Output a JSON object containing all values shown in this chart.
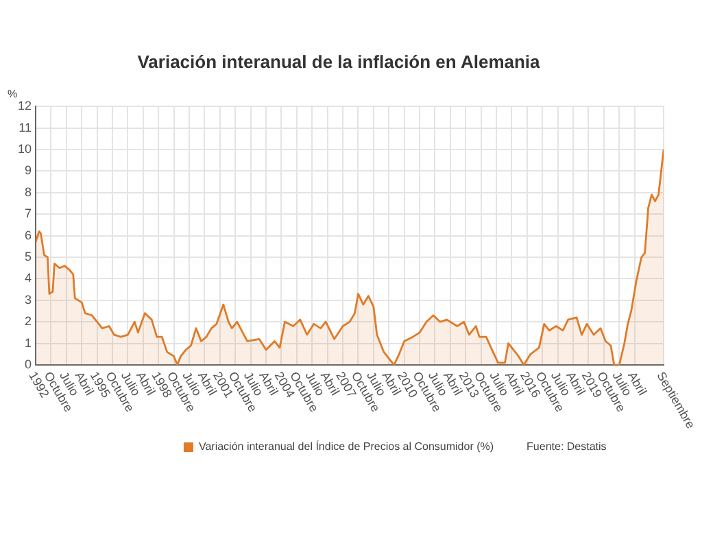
{
  "chart_data": {
    "type": "area",
    "title": "Variación interanual de la inflación en Alemania",
    "ylabel": "%",
    "x": [
      "1992-01",
      "1992-03",
      "1992-04",
      "1992-06",
      "1992-08",
      "1992-09",
      "1992-11",
      "1992-12",
      "1993-03",
      "1993-06",
      "1993-09",
      "1993-11",
      "1993-12",
      "1994-04",
      "1994-06",
      "1994-10",
      "1995-04",
      "1995-08",
      "1995-11",
      "1996-03",
      "1996-07",
      "1996-11",
      "1997-01",
      "1997-05",
      "1997-09",
      "1997-12",
      "1998-03",
      "1998-06",
      "1998-10",
      "1998-12",
      "1999-02",
      "1999-05",
      "1999-08",
      "1999-11",
      "2000-02",
      "2000-05",
      "2000-08",
      "2000-11",
      "2001-03",
      "2001-06",
      "2001-08",
      "2001-11",
      "2002-05",
      "2002-12",
      "2003-04",
      "2003-09",
      "2003-12",
      "2004-03",
      "2004-08",
      "2004-12",
      "2005-04",
      "2005-08",
      "2005-12",
      "2006-03",
      "2006-08",
      "2007-01",
      "2007-05",
      "2007-08",
      "2007-10",
      "2008-01",
      "2008-04",
      "2008-07",
      "2008-09",
      "2009-01",
      "2009-04",
      "2009-07",
      "2009-10",
      "2010-01",
      "2010-06",
      "2010-10",
      "2011-02",
      "2011-06",
      "2011-10",
      "2012-02",
      "2012-08",
      "2012-12",
      "2013-03",
      "2013-07",
      "2013-09",
      "2014-01",
      "2014-05",
      "2014-08",
      "2014-12",
      "2015-02",
      "2015-06",
      "2015-08",
      "2015-11",
      "2016-03",
      "2016-08",
      "2016-11",
      "2017-02",
      "2017-06",
      "2017-10",
      "2018-01",
      "2018-06",
      "2018-09",
      "2018-12",
      "2019-04",
      "2019-08",
      "2019-11",
      "2020-02",
      "2020-04",
      "2020-07",
      "2020-10",
      "2020-12",
      "2021-02",
      "2021-05",
      "2021-08",
      "2021-10",
      "2021-12",
      "2022-02",
      "2022-04",
      "2022-06",
      "2022-09"
    ],
    "series": [
      {
        "name": "Variación interanual del Índice de Precios al Consumidor (%)",
        "color": "#e07b28",
        "values": [
          5.7,
          6.2,
          6.1,
          5.1,
          5.0,
          3.3,
          3.4,
          4.7,
          4.5,
          4.6,
          4.4,
          4.2,
          3.1,
          2.9,
          2.4,
          2.3,
          1.7,
          1.8,
          1.4,
          1.3,
          1.4,
          2.0,
          1.5,
          2.4,
          2.1,
          1.3,
          1.3,
          0.6,
          0.4,
          0.0,
          0.4,
          0.7,
          0.9,
          1.7,
          1.1,
          1.3,
          1.7,
          1.9,
          2.8,
          2.0,
          1.7,
          2.0,
          1.1,
          1.2,
          0.7,
          1.1,
          0.8,
          2.0,
          1.8,
          2.1,
          1.4,
          1.9,
          1.7,
          2.0,
          1.2,
          1.8,
          2.0,
          2.4,
          3.3,
          2.8,
          3.2,
          2.7,
          1.4,
          0.6,
          0.3,
          0.0,
          0.5,
          1.1,
          1.3,
          1.5,
          2.0,
          2.3,
          2.0,
          2.1,
          1.8,
          2.0,
          1.4,
          1.8,
          1.3,
          1.3,
          0.6,
          0.1,
          0.1,
          1.0,
          0.6,
          0.4,
          0.0,
          0.5,
          0.8,
          1.9,
          1.6,
          1.8,
          1.6,
          2.1,
          2.2,
          1.4,
          1.9,
          1.4,
          1.7,
          1.1,
          0.9,
          0.0,
          0.0,
          1.0,
          1.9,
          2.5,
          3.9,
          5.0,
          5.2,
          7.3,
          7.9,
          7.6,
          7.9,
          10.0
        ]
      }
    ],
    "xlim": [
      "1992-01",
      "2022-09"
    ],
    "xticks": [
      {
        "value": "1992-01",
        "label": "1992"
      },
      {
        "value": "1992-10",
        "label": "Octubre"
      },
      {
        "value": "1993-07",
        "label": "Julio"
      },
      {
        "value": "1994-04",
        "label": "Abril"
      },
      {
        "value": "1995-01",
        "label": "1995"
      },
      {
        "value": "1995-10",
        "label": "Octubre"
      },
      {
        "value": "1996-07",
        "label": "Julio"
      },
      {
        "value": "1997-04",
        "label": "Abril"
      },
      {
        "value": "1998-01",
        "label": "1998"
      },
      {
        "value": "1998-10",
        "label": "Octubre"
      },
      {
        "value": "1999-07",
        "label": "Julio"
      },
      {
        "value": "2000-04",
        "label": "Abril"
      },
      {
        "value": "2001-01",
        "label": "2001"
      },
      {
        "value": "2001-10",
        "label": "Octubre"
      },
      {
        "value": "2002-07",
        "label": "Julio"
      },
      {
        "value": "2003-04",
        "label": "Abril"
      },
      {
        "value": "2004-01",
        "label": "2004"
      },
      {
        "value": "2004-10",
        "label": "Octubre"
      },
      {
        "value": "2005-07",
        "label": "Julio"
      },
      {
        "value": "2006-04",
        "label": "Abril"
      },
      {
        "value": "2007-01",
        "label": "2007"
      },
      {
        "value": "2007-10",
        "label": "Octubre"
      },
      {
        "value": "2008-07",
        "label": "Julio"
      },
      {
        "value": "2009-04",
        "label": "Abril"
      },
      {
        "value": "2010-01",
        "label": "2010"
      },
      {
        "value": "2010-10",
        "label": "Octubre"
      },
      {
        "value": "2011-07",
        "label": "Julio"
      },
      {
        "value": "2012-04",
        "label": "Abril"
      },
      {
        "value": "2013-01",
        "label": "2013"
      },
      {
        "value": "2013-10",
        "label": "Octubre"
      },
      {
        "value": "2014-07",
        "label": "Julio"
      },
      {
        "value": "2015-04",
        "label": "Abril"
      },
      {
        "value": "2016-01",
        "label": "2016"
      },
      {
        "value": "2016-10",
        "label": "Octubre"
      },
      {
        "value": "2017-07",
        "label": "Julio"
      },
      {
        "value": "2018-04",
        "label": "Abril"
      },
      {
        "value": "2019-01",
        "label": "2019"
      },
      {
        "value": "2019-10",
        "label": "Octubre"
      },
      {
        "value": "2020-07",
        "label": "Julio"
      },
      {
        "value": "2021-04",
        "label": "Abril"
      },
      {
        "value": "2022-09",
        "label": "Septiembre"
      }
    ],
    "ylim": [
      0,
      12
    ],
    "yticks": [
      0,
      1,
      2,
      3,
      4,
      5,
      6,
      7,
      8,
      9,
      10,
      11,
      12
    ],
    "grid": true,
    "legend": "bottom",
    "annotations": [
      "Fuente: Destatis"
    ]
  }
}
